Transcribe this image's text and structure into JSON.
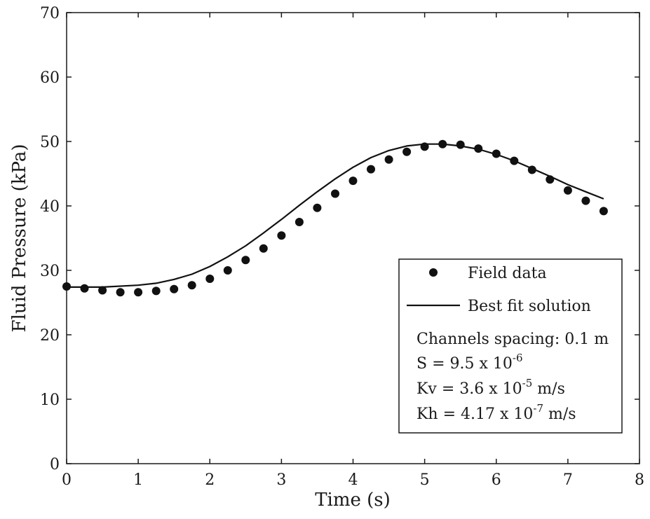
{
  "chart_data": {
    "type": "line",
    "title": "",
    "xlabel": "Time (s)",
    "ylabel": "Fluid Pressure (kPa)",
    "xlim": [
      0,
      8
    ],
    "ylim": [
      0,
      70
    ],
    "xticks": [
      "0",
      "1",
      "2",
      "3",
      "4",
      "5",
      "6",
      "7",
      "8"
    ],
    "yticks": [
      "0",
      "10",
      "20",
      "30",
      "40",
      "50",
      "60",
      "70"
    ],
    "grid": false,
    "legend_position": "bottom-right",
    "series": [
      {
        "name": "Field data",
        "style": "markers",
        "x": [
          0,
          0.25,
          0.5,
          0.75,
          1.0,
          1.25,
          1.5,
          1.75,
          2.0,
          2.25,
          2.5,
          2.75,
          3.0,
          3.25,
          3.5,
          3.75,
          4.0,
          4.25,
          4.5,
          4.75,
          5.0,
          5.25,
          5.5,
          5.75,
          6.0,
          6.25,
          6.5,
          6.75,
          7.0,
          7.25,
          7.5
        ],
        "y": [
          27.5,
          27.2,
          26.9,
          26.6,
          26.6,
          26.8,
          27.1,
          27.7,
          28.7,
          30.0,
          31.6,
          33.4,
          35.4,
          37.5,
          39.7,
          41.9,
          43.9,
          45.7,
          47.2,
          48.4,
          49.2,
          49.6,
          49.5,
          48.9,
          48.1,
          47.0,
          45.6,
          44.1,
          42.4,
          40.8,
          39.2
        ]
      },
      {
        "name": "Best fit solution",
        "style": "line",
        "x": [
          0,
          0.5,
          1.0,
          1.25,
          1.5,
          1.75,
          2.0,
          2.25,
          2.5,
          2.75,
          3.0,
          3.25,
          3.5,
          3.75,
          4.0,
          4.25,
          4.5,
          4.75,
          5.0,
          5.25,
          5.5,
          5.75,
          6.0,
          6.25,
          6.5,
          6.75,
          7.0,
          7.25,
          7.5
        ],
        "y": [
          27.4,
          27.4,
          27.7,
          28.0,
          28.6,
          29.4,
          30.6,
          32.1,
          33.8,
          35.8,
          37.9,
          40.1,
          42.2,
          44.2,
          46.0,
          47.5,
          48.6,
          49.3,
          49.6,
          49.6,
          49.3,
          48.8,
          48.0,
          47.0,
          45.8,
          44.6,
          43.3,
          42.2,
          41.1
        ]
      }
    ],
    "legend": {
      "entries": [
        "Field data",
        "Best fit solution"
      ],
      "notes": {
        "line1": "Channels spacing: 0.1 m",
        "line2_base": "S = 9.5 x 10",
        "line2_exp": "-6",
        "line3_base": "Kv = 3.6 x 10",
        "line3_exp": "-5",
        "line3_unit": " m/s",
        "line4_base": "Kh = 4.17 x 10",
        "line4_exp": "-7",
        "line4_unit": " m/s"
      }
    }
  }
}
